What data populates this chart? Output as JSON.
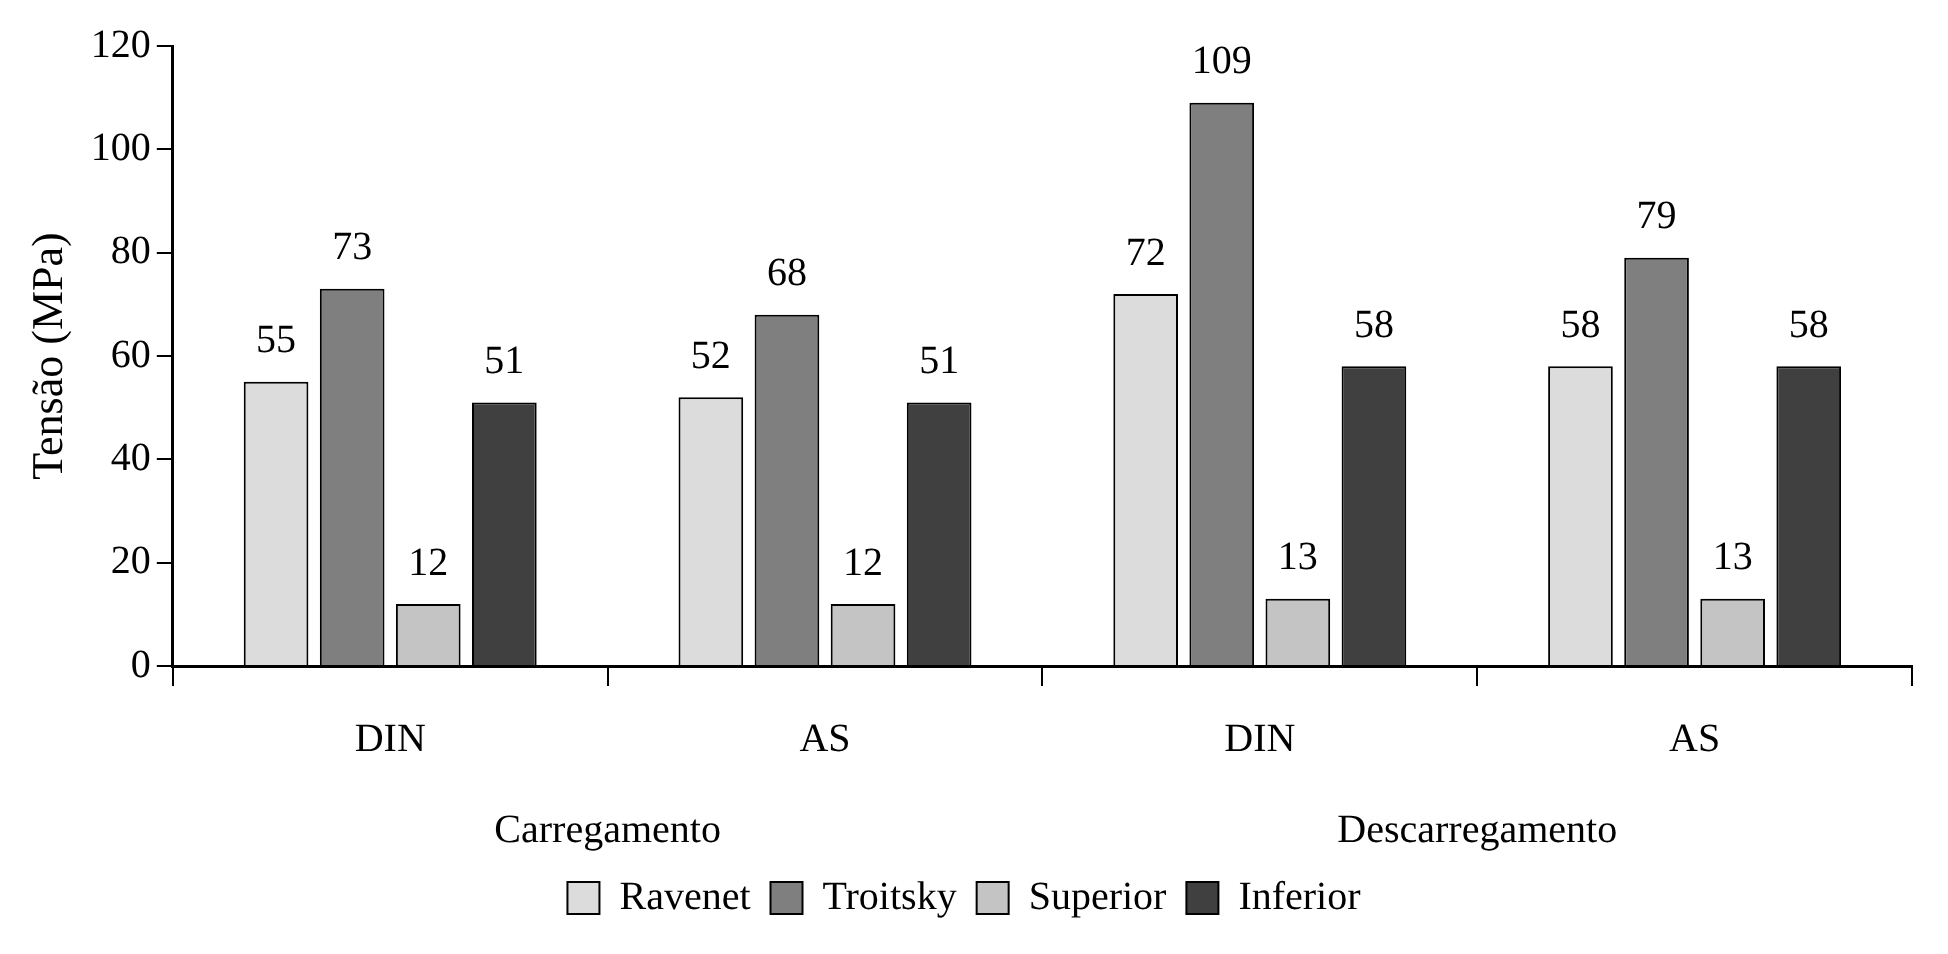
{
  "chart_data": {
    "type": "bar",
    "ylabel": "Tensão (MPa)",
    "categories": [
      "DIN",
      "AS",
      "DIN",
      "AS"
    ],
    "annotations": [
      "Carregamento",
      "Descarregamento"
    ],
    "series": [
      {
        "name": "Ravenet",
        "color": "#dcdcdc",
        "values": [
          55,
          52,
          72,
          58
        ]
      },
      {
        "name": "Troitsky",
        "color": "#7f7f7f",
        "values": [
          73,
          68,
          109,
          79
        ]
      },
      {
        "name": "Superior",
        "color": "#c4c4c4",
        "values": [
          12,
          12,
          13,
          13
        ]
      },
      {
        "name": "Inferior",
        "color": "#404040",
        "values": [
          51,
          51,
          58,
          58
        ]
      }
    ],
    "ylim": [
      0,
      120
    ],
    "yticks": [
      0,
      20,
      40,
      60,
      80,
      100,
      120
    ],
    "grid": false,
    "legend": "bottom",
    "data_labels": true
  }
}
